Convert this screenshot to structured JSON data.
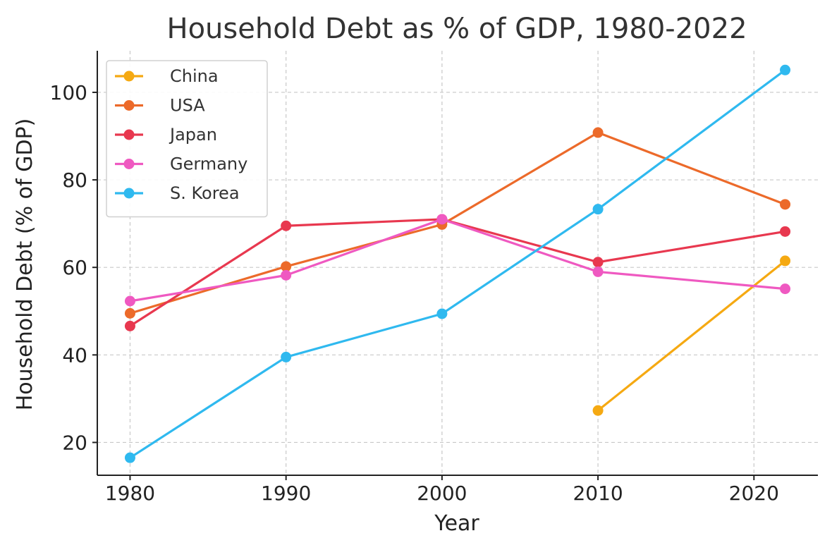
{
  "chart_data": {
    "type": "line",
    "title": "Household Debt as % of GDP, 1980-2022",
    "xlabel": "Year",
    "ylabel": "Household Debt (% of GDP)",
    "xlim": [
      1977.9,
      2024.1
    ],
    "ylim": [
      12.5,
      109.5
    ],
    "xticks": [
      1980,
      1990,
      2000,
      2010,
      2020
    ],
    "yticks": [
      20,
      40,
      60,
      80,
      100
    ],
    "grid": true,
    "legend_position": "top-left",
    "series": [
      {
        "name": "China",
        "color": "#f5a912",
        "points": [
          [
            2010,
            27.3
          ],
          [
            2022,
            61.5
          ]
        ]
      },
      {
        "name": "USA",
        "color": "#ec6a2a",
        "points": [
          [
            1980,
            49.5
          ],
          [
            1990,
            60.2
          ],
          [
            2000,
            69.8
          ],
          [
            2010,
            90.8
          ],
          [
            2022,
            74.4
          ]
        ]
      },
      {
        "name": "Japan",
        "color": "#e8384f",
        "points": [
          [
            1980,
            46.6
          ],
          [
            1990,
            69.5
          ],
          [
            2000,
            71.0
          ],
          [
            2010,
            61.2
          ],
          [
            2022,
            68.2
          ]
        ]
      },
      {
        "name": "Germany",
        "color": "#ef59c1",
        "points": [
          [
            1980,
            52.3
          ],
          [
            1990,
            58.2
          ],
          [
            2000,
            71.0
          ],
          [
            2010,
            59.0
          ],
          [
            2022,
            55.1
          ]
        ]
      },
      {
        "name": "S. Korea",
        "color": "#2fb9ef",
        "points": [
          [
            1980,
            16.5
          ],
          [
            1990,
            39.5
          ],
          [
            2000,
            49.4
          ],
          [
            2010,
            73.3
          ],
          [
            2022,
            105.1
          ]
        ]
      }
    ]
  }
}
